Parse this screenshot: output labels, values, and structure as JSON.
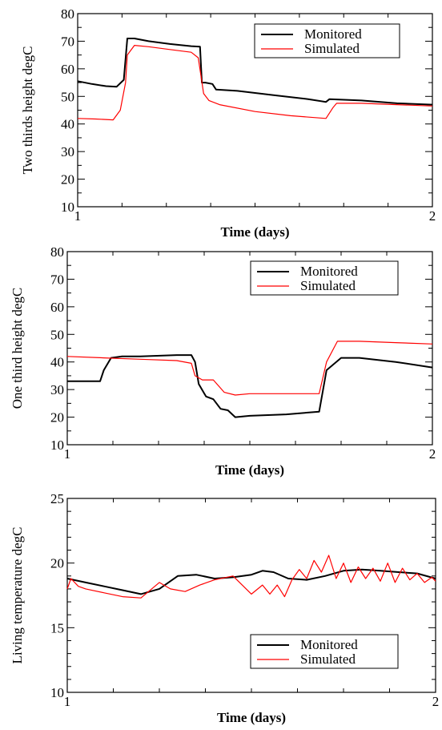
{
  "chart_data": [
    {
      "type": "line",
      "xlabel": "Time (days)",
      "ylabel": "Two thirds height degC",
      "xlim": [
        1,
        2
      ],
      "ylim": [
        10,
        80
      ],
      "xticks": [
        "1",
        "2"
      ],
      "yticks": [
        "10",
        "20",
        "30",
        "40",
        "50",
        "60",
        "70",
        "80"
      ],
      "legend_position": "top-right",
      "grid": false,
      "series": [
        {
          "name": "Monitored",
          "color": "#000000",
          "x": [
            1.0,
            1.04,
            1.08,
            1.11,
            1.13,
            1.14,
            1.16,
            1.2,
            1.26,
            1.32,
            1.345,
            1.35,
            1.36,
            1.38,
            1.39,
            1.45,
            1.55,
            1.65,
            1.7,
            1.71,
            1.8,
            1.9,
            2.0
          ],
          "y": [
            55.5,
            54.5,
            53.7,
            53.5,
            56.0,
            71.0,
            71.0,
            70.0,
            69.0,
            68.2,
            68.0,
            55.0,
            55.0,
            54.5,
            52.5,
            52.0,
            50.5,
            49.0,
            48.0,
            49.0,
            48.5,
            47.5,
            47.0
          ]
        },
        {
          "name": "Simulated",
          "color": "#ff0000",
          "x": [
            1.0,
            1.05,
            1.1,
            1.12,
            1.135,
            1.14,
            1.16,
            1.2,
            1.26,
            1.32,
            1.34,
            1.355,
            1.37,
            1.4,
            1.5,
            1.6,
            1.7,
            1.72,
            1.73,
            1.8,
            1.9,
            2.0
          ],
          "y": [
            42.0,
            41.8,
            41.5,
            45.0,
            55.0,
            65.0,
            68.5,
            68.0,
            67.0,
            66.0,
            64.0,
            51.0,
            48.5,
            47.0,
            44.5,
            43.0,
            42.0,
            46.0,
            47.5,
            47.5,
            47.0,
            46.5
          ]
        }
      ]
    },
    {
      "type": "line",
      "xlabel": "Time (days)",
      "ylabel": "One third height degC",
      "xlim": [
        1,
        2
      ],
      "ylim": [
        10,
        80
      ],
      "xticks": [
        "1",
        "2"
      ],
      "yticks": [
        "10",
        "20",
        "30",
        "40",
        "50",
        "60",
        "70",
        "80"
      ],
      "legend_position": "top-right",
      "grid": false,
      "series": [
        {
          "name": "Monitored",
          "color": "#000000",
          "x": [
            1.0,
            1.09,
            1.1,
            1.12,
            1.15,
            1.2,
            1.3,
            1.34,
            1.35,
            1.36,
            1.38,
            1.4,
            1.42,
            1.44,
            1.46,
            1.5,
            1.6,
            1.69,
            1.71,
            1.75,
            1.8,
            1.9,
            2.0
          ],
          "y": [
            33.0,
            33.0,
            37.0,
            41.5,
            42.0,
            42.0,
            42.5,
            42.5,
            40.0,
            32.0,
            27.5,
            26.5,
            23.0,
            22.5,
            20.0,
            20.5,
            21.0,
            22.0,
            37.0,
            41.5,
            41.5,
            40.0,
            38.0
          ]
        },
        {
          "name": "Simulated",
          "color": "#ff0000",
          "x": [
            1.0,
            1.1,
            1.2,
            1.3,
            1.34,
            1.35,
            1.37,
            1.4,
            1.43,
            1.46,
            1.5,
            1.6,
            1.69,
            1.71,
            1.74,
            1.8,
            1.9,
            2.0
          ],
          "y": [
            42.0,
            41.5,
            41.0,
            40.5,
            39.5,
            35.0,
            33.5,
            33.5,
            29.0,
            28.0,
            28.5,
            28.5,
            28.5,
            40.0,
            47.5,
            47.5,
            47.0,
            46.5
          ]
        }
      ]
    },
    {
      "type": "line",
      "xlabel": "Time (days)",
      "ylabel": "Living temperature degC",
      "xlim": [
        1,
        2
      ],
      "ylim": [
        10,
        25
      ],
      "xticks": [
        "1",
        "2"
      ],
      "yticks": [
        "10",
        "15",
        "20",
        "25"
      ],
      "legend_position": "bottom-right",
      "grid": false,
      "series": [
        {
          "name": "Monitored",
          "color": "#000000",
          "x": [
            1.0,
            1.05,
            1.1,
            1.15,
            1.2,
            1.25,
            1.3,
            1.35,
            1.4,
            1.45,
            1.5,
            1.53,
            1.56,
            1.6,
            1.65,
            1.7,
            1.75,
            1.8,
            1.85,
            1.9,
            1.95,
            2.0
          ],
          "y": [
            18.8,
            18.5,
            18.2,
            17.9,
            17.6,
            18.0,
            19.0,
            19.1,
            18.8,
            18.9,
            19.1,
            19.4,
            19.3,
            18.8,
            18.7,
            19.0,
            19.4,
            19.5,
            19.4,
            19.3,
            19.2,
            18.8
          ],
          "approximate": true
        },
        {
          "name": "Simulated",
          "color": "#ff0000",
          "x": [
            1.0,
            1.01,
            1.03,
            1.05,
            1.1,
            1.15,
            1.2,
            1.25,
            1.28,
            1.32,
            1.36,
            1.4,
            1.45,
            1.5,
            1.53,
            1.55,
            1.57,
            1.59,
            1.61,
            1.63,
            1.65,
            1.67,
            1.69,
            1.71,
            1.73,
            1.75,
            1.77,
            1.79,
            1.81,
            1.83,
            1.85,
            1.87,
            1.89,
            1.91,
            1.93,
            1.95,
            1.97,
            1.99,
            2.0
          ],
          "y": [
            18.0,
            18.8,
            18.2,
            18.0,
            17.7,
            17.4,
            17.3,
            18.5,
            18.0,
            17.8,
            18.3,
            18.7,
            19.0,
            17.6,
            18.3,
            17.6,
            18.3,
            17.4,
            18.7,
            19.5,
            18.8,
            20.2,
            19.3,
            20.6,
            18.8,
            20.0,
            18.5,
            19.7,
            18.8,
            19.6,
            18.6,
            20.0,
            18.5,
            19.6,
            18.7,
            19.2,
            18.5,
            18.9,
            18.6
          ],
          "approximate": true
        }
      ]
    }
  ]
}
